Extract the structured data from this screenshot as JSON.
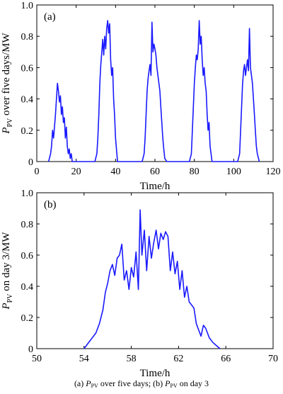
{
  "chart_data": [
    {
      "type": "line",
      "panel_label": "(a)",
      "xlabel": "Time/h",
      "ylabel": {
        "main": "P",
        "sub": "PV",
        "rest": " over five days/MW"
      },
      "xlim": [
        0,
        120
      ],
      "ylim": [
        0,
        1.0
      ],
      "xticks": [
        "0",
        "20",
        "40",
        "60",
        "80",
        "100",
        "120"
      ],
      "yticks": [
        "0",
        "0.2",
        "0.4",
        "0.6",
        "0.8",
        "1.0"
      ],
      "color": "#1a1aff",
      "series": [
        {
          "x": [
            6.0,
            7.0,
            7.5,
            8.0,
            8.5,
            9.0,
            9.5,
            10.0,
            10.5,
            11.0,
            11.5,
            12.0,
            12.5,
            13.0,
            13.5,
            14.0,
            14.5,
            15.0,
            15.5,
            16.0,
            16.5,
            17.0,
            17.5,
            18.0,
            23.0,
            29.5,
            30.5,
            31.0,
            31.5,
            32.0,
            32.5,
            33.0,
            33.5,
            34.0,
            34.5,
            35.0,
            35.5,
            36.0,
            36.5,
            37.0,
            37.5,
            38.0,
            38.5,
            39.0,
            39.5,
            40.0,
            41.0,
            47.0,
            53.5,
            54.5,
            55.0,
            55.5,
            56.0,
            56.5,
            57.0,
            57.5,
            58.0,
            58.5,
            59.0,
            59.5,
            60.0,
            60.5,
            61.0,
            61.5,
            62.0,
            62.5,
            63.0,
            63.5,
            64.0,
            64.5,
            65.0,
            66.0,
            71.0,
            77.5,
            78.5,
            79.0,
            79.5,
            80.0,
            80.5,
            81.0,
            81.5,
            82.0,
            82.5,
            83.0,
            83.5,
            84.0,
            84.5,
            85.0,
            85.5,
            86.0,
            86.5,
            87.0,
            87.5,
            88.0,
            89.0,
            95.0,
            102.0,
            103.0,
            103.5,
            104.0,
            104.5,
            105.0,
            105.5,
            106.0,
            106.5,
            107.0,
            107.5,
            108.0,
            108.5,
            109.0,
            109.5,
            110.0,
            110.5,
            111.0,
            111.5,
            112.0,
            113.0
          ],
          "y": [
            0.0,
            0.05,
            0.1,
            0.2,
            0.15,
            0.22,
            0.3,
            0.4,
            0.5,
            0.45,
            0.38,
            0.42,
            0.3,
            0.35,
            0.25,
            0.28,
            0.15,
            0.22,
            0.1,
            0.05,
            0.08,
            0.02,
            0.05,
            0.0,
            0.0,
            0.0,
            0.05,
            0.15,
            0.3,
            0.5,
            0.62,
            0.7,
            0.78,
            0.68,
            0.8,
            0.72,
            0.85,
            0.9,
            0.82,
            0.88,
            0.65,
            0.55,
            0.6,
            0.4,
            0.3,
            0.15,
            0.0,
            0.0,
            0.0,
            0.05,
            0.15,
            0.3,
            0.45,
            0.53,
            0.58,
            0.62,
            0.55,
            0.89,
            0.7,
            0.75,
            0.72,
            0.68,
            0.6,
            0.55,
            0.5,
            0.45,
            0.35,
            0.25,
            0.15,
            0.08,
            0.02,
            0.0,
            0.0,
            0.0,
            0.05,
            0.2,
            0.35,
            0.5,
            0.6,
            0.68,
            0.65,
            0.72,
            0.9,
            0.75,
            0.8,
            0.65,
            0.55,
            0.6,
            0.5,
            0.45,
            0.3,
            0.2,
            0.25,
            0.1,
            0.0,
            0.0,
            0.0,
            0.05,
            0.2,
            0.35,
            0.5,
            0.58,
            0.62,
            0.55,
            0.6,
            0.65,
            0.58,
            0.85,
            0.6,
            0.55,
            0.5,
            0.4,
            0.3,
            0.2,
            0.1,
            0.05,
            0.0
          ]
        }
      ]
    },
    {
      "type": "line",
      "panel_label": "(b)",
      "xlabel": "Time/h",
      "ylabel": {
        "main": "P",
        "sub": "PV",
        "rest": " on day 3/MW"
      },
      "xlim": [
        50,
        70
      ],
      "ylim": [
        0,
        1.0
      ],
      "xticks": [
        "50",
        "54",
        "58",
        "62",
        "66",
        "70"
      ],
      "yticks": [
        "0",
        "0.2",
        "0.4",
        "0.6",
        "0.8",
        "1.0"
      ],
      "color": "#1a1aff",
      "series": [
        {
          "x": [
            54.0,
            54.3,
            54.6,
            55.0,
            55.3,
            55.6,
            55.8,
            56.0,
            56.2,
            56.4,
            56.6,
            56.8,
            57.0,
            57.2,
            57.4,
            57.6,
            57.8,
            58.0,
            58.2,
            58.4,
            58.6,
            58.75,
            58.9,
            59.1,
            59.3,
            59.5,
            59.7,
            59.9,
            60.1,
            60.3,
            60.5,
            60.7,
            60.9,
            61.1,
            61.3,
            61.5,
            61.7,
            61.9,
            62.1,
            62.3,
            62.5,
            62.7,
            62.9,
            63.1,
            63.3,
            63.5,
            63.7,
            63.9,
            64.1,
            64.3,
            64.6,
            64.9,
            65.2,
            65.5
          ],
          "y": [
            0.0,
            0.03,
            0.06,
            0.1,
            0.16,
            0.25,
            0.36,
            0.42,
            0.5,
            0.54,
            0.47,
            0.58,
            0.6,
            0.67,
            0.44,
            0.5,
            0.38,
            0.52,
            0.46,
            0.62,
            0.38,
            0.89,
            0.6,
            0.76,
            0.5,
            0.72,
            0.58,
            0.68,
            0.76,
            0.64,
            0.74,
            0.7,
            0.75,
            0.72,
            0.5,
            0.62,
            0.48,
            0.56,
            0.38,
            0.5,
            0.33,
            0.4,
            0.3,
            0.28,
            0.26,
            0.16,
            0.12,
            0.08,
            0.15,
            0.13,
            0.07,
            0.04,
            0.02,
            0.0
          ]
        }
      ]
    }
  ],
  "caption": {
    "a_prefix": "(a) ",
    "p": "P",
    "sub": "PV",
    "a_rest": " over five days; (b) ",
    "b_rest": " on day 3"
  }
}
